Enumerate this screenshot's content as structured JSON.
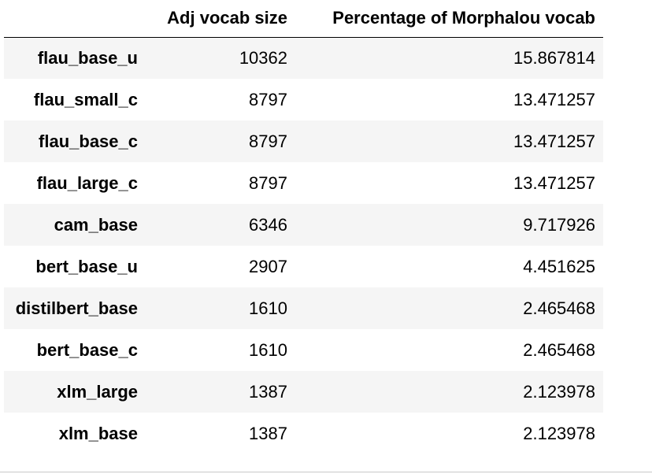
{
  "table": {
    "columns": [
      "",
      "Adj vocab size",
      "Percentage of Morphalou vocab"
    ],
    "rows": [
      {
        "index": "flau_base_u",
        "adj_vocab_size": "10362",
        "percentage": "15.867814"
      },
      {
        "index": "flau_small_c",
        "adj_vocab_size": "8797",
        "percentage": "13.471257"
      },
      {
        "index": "flau_base_c",
        "adj_vocab_size": "8797",
        "percentage": "13.471257"
      },
      {
        "index": "flau_large_c",
        "adj_vocab_size": "8797",
        "percentage": "13.471257"
      },
      {
        "index": "cam_base",
        "adj_vocab_size": "6346",
        "percentage": "9.717926"
      },
      {
        "index": "bert_base_u",
        "adj_vocab_size": "2907",
        "percentage": "4.451625"
      },
      {
        "index": "distilbert_base",
        "adj_vocab_size": "1610",
        "percentage": "2.465468"
      },
      {
        "index": "bert_base_c",
        "adj_vocab_size": "1610",
        "percentage": "2.465468"
      },
      {
        "index": "xlm_large",
        "adj_vocab_size": "1387",
        "percentage": "2.123978"
      },
      {
        "index": "xlm_base",
        "adj_vocab_size": "1387",
        "percentage": "2.123978"
      }
    ]
  }
}
